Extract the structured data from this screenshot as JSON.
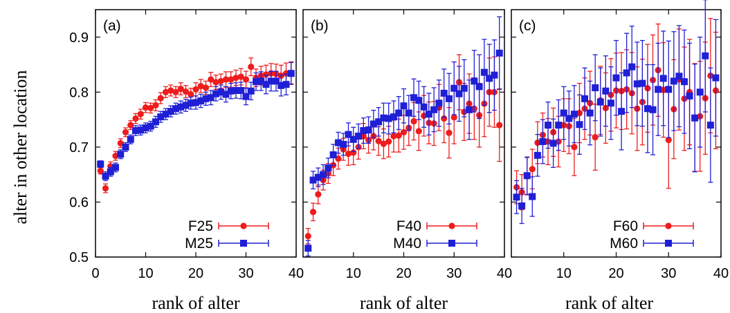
{
  "chart_data": {
    "type": "scatter",
    "ylabel": "alter in other location",
    "xlabel": "rank of alter",
    "ylim": [
      0.5,
      0.95
    ],
    "xlim": [
      0,
      40
    ],
    "yticks": [
      "0.5",
      "0.6",
      "0.7",
      "0.8",
      "0.9"
    ],
    "xticks_first": [
      "0",
      "10",
      "20",
      "30",
      "40"
    ],
    "xticks_rest": [
      "10",
      "20",
      "30",
      "40"
    ],
    "colors": {
      "F": "#ee1c1c",
      "M": "#1f1fd6"
    },
    "panels": [
      {
        "label": "(a)",
        "series": [
          {
            "name": "F25",
            "marker": "circle",
            "x": [
              1,
              2,
              3,
              4,
              5,
              6,
              7,
              8,
              9,
              10,
              11,
              12,
              13,
              14,
              15,
              16,
              17,
              18,
              19,
              20,
              21,
              22,
              23,
              24,
              25,
              26,
              27,
              28,
              29,
              30,
              31,
              32,
              33,
              34,
              35,
              36,
              37,
              38,
              39
            ],
            "y": [
              0.657,
              0.625,
              0.665,
              0.684,
              0.707,
              0.727,
              0.74,
              0.752,
              0.76,
              0.772,
              0.771,
              0.776,
              0.789,
              0.8,
              0.803,
              0.8,
              0.806,
              0.801,
              0.796,
              0.805,
              0.811,
              0.808,
              0.823,
              0.818,
              0.82,
              0.823,
              0.823,
              0.826,
              0.828,
              0.823,
              0.846,
              0.826,
              0.83,
              0.832,
              0.834,
              0.833,
              0.83,
              0.834,
              0.835
            ],
            "err": [
              0.006,
              0.008,
              0.008,
              0.008,
              0.008,
              0.008,
              0.008,
              0.009,
              0.009,
              0.009,
              0.009,
              0.01,
              0.01,
              0.01,
              0.01,
              0.01,
              0.011,
              0.011,
              0.011,
              0.012,
              0.012,
              0.012,
              0.013,
              0.013,
              0.013,
              0.014,
              0.014,
              0.014,
              0.015,
              0.015,
              0.016,
              0.016,
              0.017,
              0.017,
              0.018,
              0.018,
              0.019,
              0.019,
              0.02
            ]
          },
          {
            "name": "M25",
            "marker": "square",
            "x": [
              1,
              2,
              3,
              4,
              5,
              6,
              7,
              8,
              9,
              10,
              11,
              12,
              13,
              14,
              15,
              16,
              17,
              18,
              19,
              20,
              21,
              22,
              23,
              24,
              25,
              26,
              27,
              28,
              29,
              30,
              31,
              32,
              33,
              34,
              35,
              36,
              37,
              38,
              39
            ],
            "y": [
              0.669,
              0.647,
              0.655,
              0.663,
              0.687,
              0.7,
              0.714,
              0.73,
              0.731,
              0.735,
              0.738,
              0.746,
              0.755,
              0.76,
              0.765,
              0.77,
              0.773,
              0.776,
              0.78,
              0.781,
              0.784,
              0.788,
              0.79,
              0.797,
              0.8,
              0.796,
              0.802,
              0.803,
              0.803,
              0.792,
              0.802,
              0.819,
              0.82,
              0.814,
              0.82,
              0.82,
              0.812,
              0.814,
              0.834
            ],
            "err": [
              0.006,
              0.008,
              0.008,
              0.008,
              0.008,
              0.008,
              0.008,
              0.009,
              0.009,
              0.009,
              0.009,
              0.01,
              0.01,
              0.01,
              0.01,
              0.01,
              0.011,
              0.011,
              0.011,
              0.012,
              0.012,
              0.012,
              0.013,
              0.013,
              0.013,
              0.014,
              0.014,
              0.014,
              0.015,
              0.015,
              0.016,
              0.016,
              0.017,
              0.017,
              0.018,
              0.018,
              0.019,
              0.019,
              0.02
            ]
          }
        ]
      },
      {
        "label": "(b)",
        "series": [
          {
            "name": "F40",
            "marker": "circle",
            "x": [
              1,
              2,
              3,
              4,
              5,
              6,
              7,
              8,
              9,
              10,
              11,
              12,
              13,
              14,
              15,
              16,
              17,
              18,
              19,
              20,
              21,
              22,
              23,
              24,
              25,
              26,
              27,
              28,
              29,
              30,
              31,
              32,
              33,
              34,
              35,
              36,
              37,
              38,
              39
            ],
            "y": [
              0.538,
              0.582,
              0.614,
              0.64,
              0.652,
              0.667,
              0.679,
              0.696,
              0.688,
              0.69,
              0.7,
              0.72,
              0.713,
              0.72,
              0.711,
              0.706,
              0.71,
              0.72,
              0.721,
              0.727,
              0.735,
              0.747,
              0.729,
              0.757,
              0.744,
              0.743,
              0.772,
              0.752,
              0.726,
              0.754,
              0.818,
              0.764,
              0.779,
              0.77,
              0.758,
              0.779,
              0.8,
              0.8,
              0.74
            ],
            "err": [
              0.014,
              0.016,
              0.017,
              0.018,
              0.018,
              0.019,
              0.019,
              0.02,
              0.021,
              0.022,
              0.022,
              0.023,
              0.024,
              0.025,
              0.026,
              0.027,
              0.028,
              0.029,
              0.03,
              0.031,
              0.032,
              0.034,
              0.035,
              0.037,
              0.038,
              0.04,
              0.042,
              0.044,
              0.046,
              0.048,
              0.05,
              0.052,
              0.054,
              0.056,
              0.058,
              0.06,
              0.062,
              0.064,
              0.066
            ]
          },
          {
            "name": "M40",
            "marker": "square",
            "x": [
              1,
              2,
              3,
              4,
              5,
              6,
              7,
              8,
              9,
              10,
              11,
              12,
              13,
              14,
              15,
              16,
              17,
              18,
              19,
              20,
              21,
              22,
              23,
              24,
              25,
              26,
              27,
              28,
              29,
              30,
              31,
              32,
              33,
              34,
              35,
              36,
              37,
              38,
              39
            ],
            "y": [
              0.516,
              0.64,
              0.645,
              0.65,
              0.662,
              0.686,
              0.708,
              0.705,
              0.723,
              0.714,
              0.72,
              0.73,
              0.731,
              0.742,
              0.746,
              0.753,
              0.752,
              0.755,
              0.762,
              0.775,
              0.762,
              0.79,
              0.785,
              0.773,
              0.76,
              0.768,
              0.78,
              0.798,
              0.788,
              0.807,
              0.797,
              0.807,
              0.768,
              0.82,
              0.81,
              0.836,
              0.825,
              0.831,
              0.871
            ],
            "err": [
              0.014,
              0.016,
              0.017,
              0.018,
              0.018,
              0.019,
              0.019,
              0.02,
              0.021,
              0.022,
              0.022,
              0.023,
              0.024,
              0.025,
              0.026,
              0.027,
              0.028,
              0.029,
              0.03,
              0.031,
              0.032,
              0.034,
              0.035,
              0.037,
              0.038,
              0.04,
              0.042,
              0.044,
              0.046,
              0.048,
              0.05,
              0.052,
              0.054,
              0.056,
              0.058,
              0.06,
              0.062,
              0.064,
              0.066
            ]
          }
        ]
      },
      {
        "label": "(c)",
        "series": [
          {
            "name": "F60",
            "marker": "circle",
            "x": [
              1,
              2,
              3,
              4,
              5,
              6,
              7,
              8,
              9,
              10,
              11,
              12,
              13,
              14,
              15,
              16,
              17,
              18,
              19,
              20,
              21,
              22,
              23,
              24,
              25,
              26,
              27,
              28,
              29,
              30,
              31,
              32,
              33,
              34,
              35,
              36,
              37,
              38,
              39
            ],
            "y": [
              0.627,
              0.618,
              0.647,
              0.66,
              0.708,
              0.722,
              0.71,
              0.727,
              0.71,
              0.74,
              0.738,
              0.7,
              0.762,
              0.77,
              0.78,
              0.718,
              0.785,
              0.771,
              0.795,
              0.803,
              0.802,
              0.805,
              0.798,
              0.77,
              0.782,
              0.807,
              0.822,
              0.84,
              0.804,
              0.713,
              0.769,
              0.823,
              0.788,
              0.8,
              0.754,
              0.756,
              0.789,
              0.83,
              0.803
            ],
            "err": [
              0.03,
              0.032,
              0.034,
              0.036,
              0.038,
              0.04,
              0.042,
              0.044,
              0.046,
              0.048,
              0.05,
              0.052,
              0.054,
              0.056,
              0.058,
              0.06,
              0.062,
              0.064,
              0.066,
              0.068,
              0.07,
              0.072,
              0.074,
              0.076,
              0.078,
              0.08,
              0.082,
              0.084,
              0.086,
              0.088,
              0.09,
              0.092,
              0.094,
              0.096,
              0.098,
              0.1,
              0.102,
              0.104,
              0.106
            ]
          },
          {
            "name": "M60",
            "marker": "square",
            "x": [
              1,
              2,
              3,
              4,
              5,
              6,
              7,
              8,
              9,
              10,
              11,
              12,
              13,
              14,
              15,
              16,
              17,
              18,
              19,
              20,
              21,
              22,
              23,
              24,
              25,
              26,
              27,
              28,
              29,
              30,
              31,
              32,
              33,
              34,
              35,
              36,
              37,
              38,
              39
            ],
            "y": [
              0.609,
              0.593,
              0.648,
              0.61,
              0.685,
              0.71,
              0.74,
              0.707,
              0.74,
              0.762,
              0.752,
              0.76,
              0.741,
              0.788,
              0.762,
              0.808,
              0.782,
              0.802,
              0.78,
              0.826,
              0.765,
              0.835,
              0.846,
              0.815,
              0.816,
              0.77,
              0.768,
              0.805,
              0.825,
              0.805,
              0.82,
              0.829,
              0.819,
              0.793,
              0.753,
              0.8,
              0.866,
              0.74,
              0.826
            ],
            "err": [
              0.03,
              0.032,
              0.034,
              0.036,
              0.038,
              0.04,
              0.042,
              0.044,
              0.046,
              0.048,
              0.05,
              0.052,
              0.054,
              0.056,
              0.058,
              0.06,
              0.062,
              0.064,
              0.066,
              0.068,
              0.07,
              0.072,
              0.074,
              0.076,
              0.078,
              0.08,
              0.082,
              0.084,
              0.086,
              0.088,
              0.09,
              0.092,
              0.094,
              0.096,
              0.098,
              0.1,
              0.102,
              0.104,
              0.106
            ]
          }
        ]
      }
    ]
  }
}
